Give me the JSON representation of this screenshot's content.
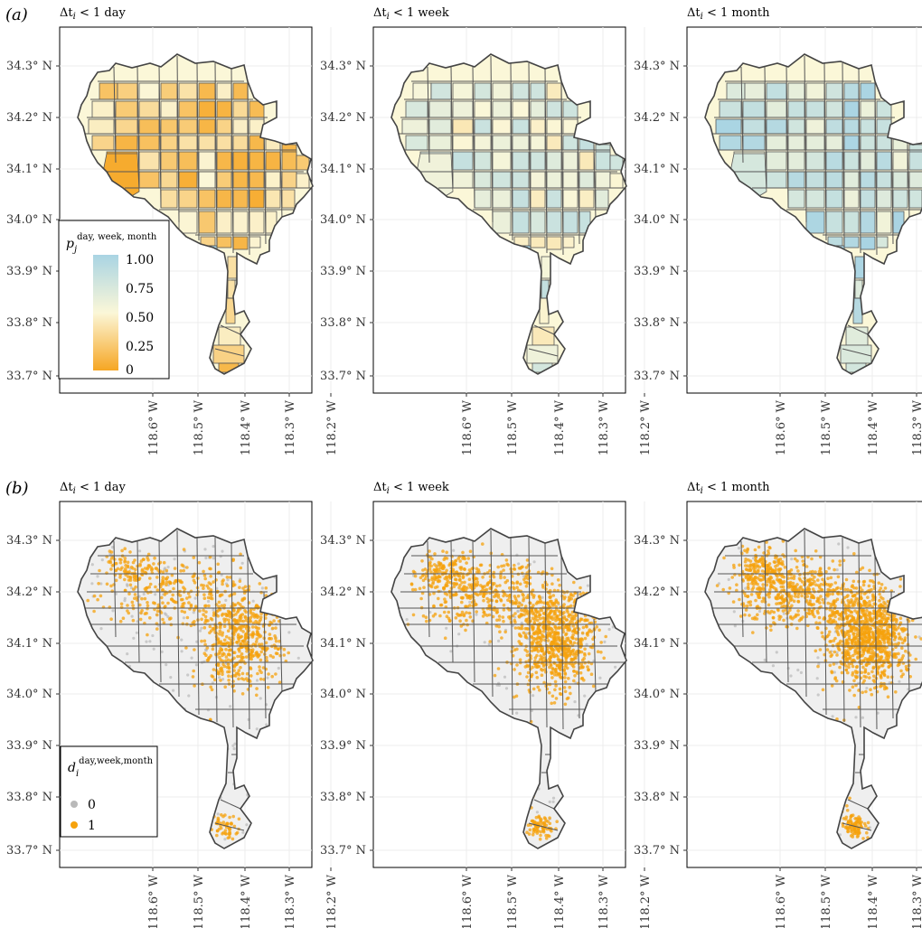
{
  "panels": [
    {
      "label": "(a)",
      "row": "a"
    },
    {
      "label": "(b)",
      "row": "b"
    }
  ],
  "column_titles": [
    {
      "base": "Δt",
      "sub": "i",
      "rest": " < 1 day"
    },
    {
      "base": "Δt",
      "sub": "i",
      "rest": " < 1 week"
    },
    {
      "base": "Δt",
      "sub": "i",
      "rest": " < 1 month"
    }
  ],
  "lat_ticks": [
    "34.3° N",
    "34.2° N",
    "34.1° N",
    "34.0° N",
    "33.9° N",
    "33.8° N",
    "33.7° N"
  ],
  "lon_ticks": [
    "118.6° W",
    "118.5° W",
    "118.4° W",
    "118.3° W",
    "118.2° W"
  ],
  "legend_a": {
    "title_base": "p",
    "title_sub": "j",
    "title_sup": "day, week, month",
    "labels": [
      "1.00",
      "0.75",
      "0.50",
      "0.25",
      "0"
    ],
    "colors": {
      "low": "#f6a623",
      "mid": "#fbf7d8",
      "high": "#a9d4e3"
    }
  },
  "legend_b": {
    "title_base": "d",
    "title_sub": "i",
    "title_sup": "day,week,month",
    "items": [
      {
        "label": "0",
        "color": "#b9b9b9"
      },
      {
        "label": "1",
        "color": "#f6a20c"
      }
    ]
  },
  "colors": {
    "border": "#555555",
    "region_fill_b": "#efefef",
    "grid": "#ececec"
  }
}
